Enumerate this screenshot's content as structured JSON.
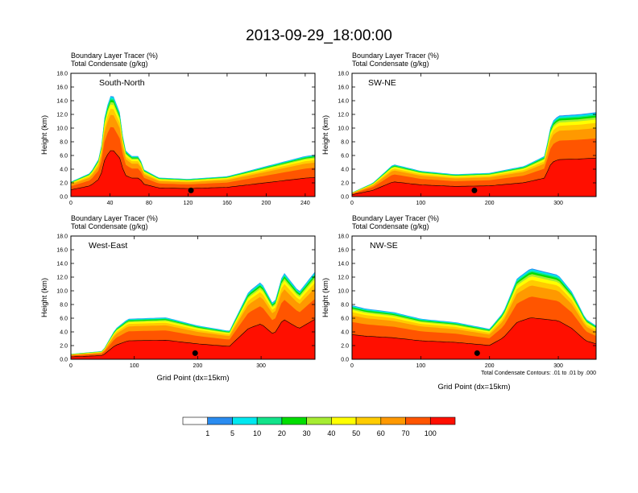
{
  "figure_title": "2013-09-29_18:00:00",
  "colors": {
    "levels": [
      "#ffffff",
      "#2a8cf0",
      "#00e8f0",
      "#12e38a",
      "#00de00",
      "#a6ec32",
      "#ffff00",
      "#ffcc00",
      "#ff9900",
      "#ff5500",
      "#ff0f00"
    ],
    "background": "#ffffff",
    "contour": "#000000"
  },
  "chart_data": [
    {
      "type": "heatmap",
      "name": "South-North",
      "title_line1": "Boundary Layer Tracer    (%)",
      "title_line2": "Total Condensate    (g/kg)",
      "xlabel": "",
      "ylabel": "Height (km)",
      "xlim": [
        0,
        250
      ],
      "ylim": [
        0,
        18
      ],
      "xticks": [
        "0",
        "40",
        "80",
        "120",
        "160",
        "200",
        "240"
      ],
      "yticks": [
        "0.0",
        "2.0",
        "4.0",
        "6.0",
        "8.0",
        "10.0",
        "12.0",
        "14.0",
        "16.0",
        "18.0"
      ],
      "top_profile": [
        [
          0,
          2.2
        ],
        [
          20,
          3.5
        ],
        [
          30,
          6
        ],
        [
          35,
          12.5
        ],
        [
          42,
          15.5
        ],
        [
          50,
          12.5
        ],
        [
          55,
          7
        ],
        [
          62,
          6
        ],
        [
          70,
          6
        ],
        [
          75,
          4
        ],
        [
          90,
          2.8
        ],
        [
          120,
          2.6
        ],
        [
          160,
          3
        ],
        [
          200,
          4.5
        ],
        [
          240,
          6
        ],
        [
          250,
          6.2
        ]
      ],
      "marker_x": 123
    },
    {
      "type": "heatmap",
      "name": "SW-NE",
      "title_line1": "Boundary Layer Tracer    (%)",
      "title_line2": "Total Condensate    (g/kg)",
      "xlabel": "",
      "ylabel": "Height (km)",
      "xlim": [
        0,
        355
      ],
      "ylim": [
        0,
        18
      ],
      "xticks": [
        "0",
        "100",
        "200",
        "300"
      ],
      "yticks": [
        "0.0",
        "2.0",
        "4.0",
        "6.0",
        "8.0",
        "10.0",
        "12.0",
        "14.0",
        "16.0",
        "18.0"
      ],
      "top_profile": [
        [
          0,
          0.6
        ],
        [
          30,
          2
        ],
        [
          60,
          4.8
        ],
        [
          100,
          3.8
        ],
        [
          150,
          3.3
        ],
        [
          200,
          3.5
        ],
        [
          250,
          4.5
        ],
        [
          280,
          6
        ],
        [
          290,
          11
        ],
        [
          300,
          12
        ],
        [
          330,
          12.2
        ],
        [
          355,
          12.5
        ]
      ],
      "marker_x": 178
    },
    {
      "type": "heatmap",
      "name": "West-East",
      "title_line1": "Boundary Layer Tracer    (%)",
      "title_line2": "Total Condensate    (g/kg)",
      "xlabel": "Grid Point (dx=15km)",
      "ylabel": "Height (km)",
      "xlim": [
        0,
        385
      ],
      "ylim": [
        0,
        18
      ],
      "xticks": [
        "0",
        "100",
        "200",
        "300"
      ],
      "yticks": [
        "0.0",
        "2.0",
        "4.0",
        "6.0",
        "8.0",
        "10.0",
        "12.0",
        "14.0",
        "16.0",
        "18.0"
      ],
      "top_profile": [
        [
          0,
          0.8
        ],
        [
          50,
          1.2
        ],
        [
          70,
          4.5
        ],
        [
          90,
          6
        ],
        [
          150,
          6.2
        ],
        [
          200,
          5
        ],
        [
          250,
          4.2
        ],
        [
          280,
          10
        ],
        [
          300,
          11.5
        ],
        [
          320,
          8
        ],
        [
          335,
          13
        ],
        [
          360,
          10
        ],
        [
          385,
          13
        ]
      ],
      "marker_x": 196
    },
    {
      "type": "heatmap",
      "name": "NW-SE",
      "title_line1": "Boundary Layer Tracer    (%)",
      "title_line2": "Total Condensate    (g/kg)",
      "xlabel": "Grid Point (dx=15km)",
      "ylabel": "Height (km)",
      "xlim": [
        0,
        355
      ],
      "ylim": [
        0,
        18
      ],
      "xticks": [
        "0",
        "100",
        "200",
        "300"
      ],
      "yticks": [
        "0.0",
        "2.0",
        "4.0",
        "6.0",
        "8.0",
        "10.0",
        "12.0",
        "14.0",
        "16.0",
        "18.0"
      ],
      "top_profile": [
        [
          0,
          8
        ],
        [
          20,
          7.5
        ],
        [
          60,
          7
        ],
        [
          100,
          6
        ],
        [
          150,
          5.5
        ],
        [
          200,
          4.5
        ],
        [
          220,
          7
        ],
        [
          240,
          12
        ],
        [
          260,
          13.5
        ],
        [
          300,
          12.5
        ],
        [
          320,
          10
        ],
        [
          340,
          6
        ],
        [
          355,
          5
        ]
      ],
      "marker_x": 182,
      "note": "Total Condensate Contours: .01 to .01 by .000"
    }
  ],
  "colorbar": {
    "labels": [
      "1",
      "5",
      "10",
      "20",
      "30",
      "40",
      "50",
      "60",
      "70",
      "100"
    ]
  }
}
